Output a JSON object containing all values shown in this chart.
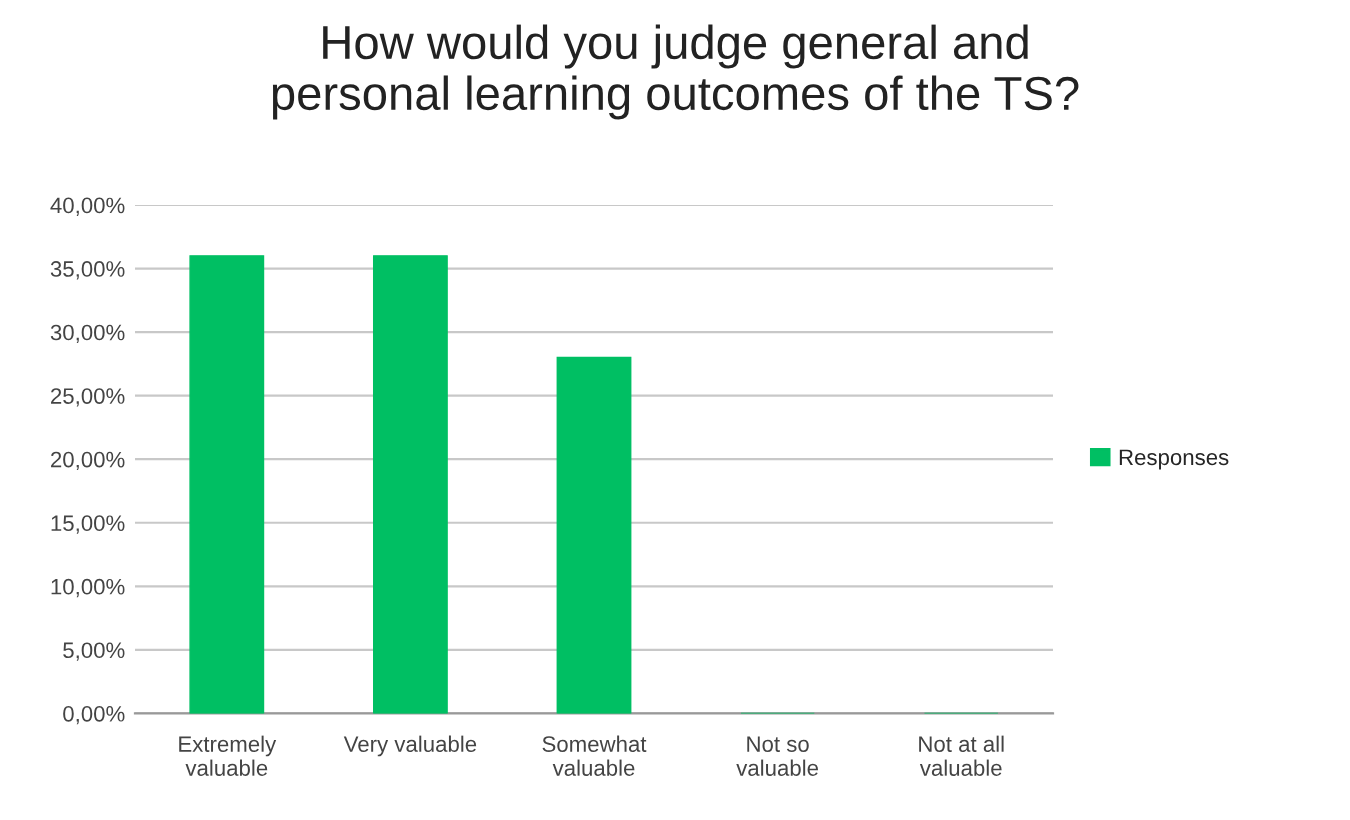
{
  "chart_data": {
    "type": "bar",
    "title": "How would you judge general and\npersonal learning outcomes of the TS?",
    "categories": [
      "Extremely\nvaluable",
      "Very valuable",
      "Somewhat\nvaluable",
      "Not so\nvaluable",
      "Not at all\nvaluable"
    ],
    "series": [
      {
        "name": "Responses",
        "color": "#00bf63",
        "values": [
          36,
          36,
          28,
          0,
          0
        ]
      }
    ],
    "ylim": [
      0,
      40
    ],
    "yticks": [
      {
        "value": 0,
        "label": "0,00%"
      },
      {
        "value": 5,
        "label": "5,00%"
      },
      {
        "value": 10,
        "label": "10,00%"
      },
      {
        "value": 15,
        "label": "15,00%"
      },
      {
        "value": 20,
        "label": "20,00%"
      },
      {
        "value": 25,
        "label": "25,00%"
      },
      {
        "value": 30,
        "label": "30,00%"
      },
      {
        "value": 35,
        "label": "35,00%"
      },
      {
        "value": 40,
        "label": "40,00%"
      }
    ],
    "grid": "y",
    "legend": "right"
  }
}
